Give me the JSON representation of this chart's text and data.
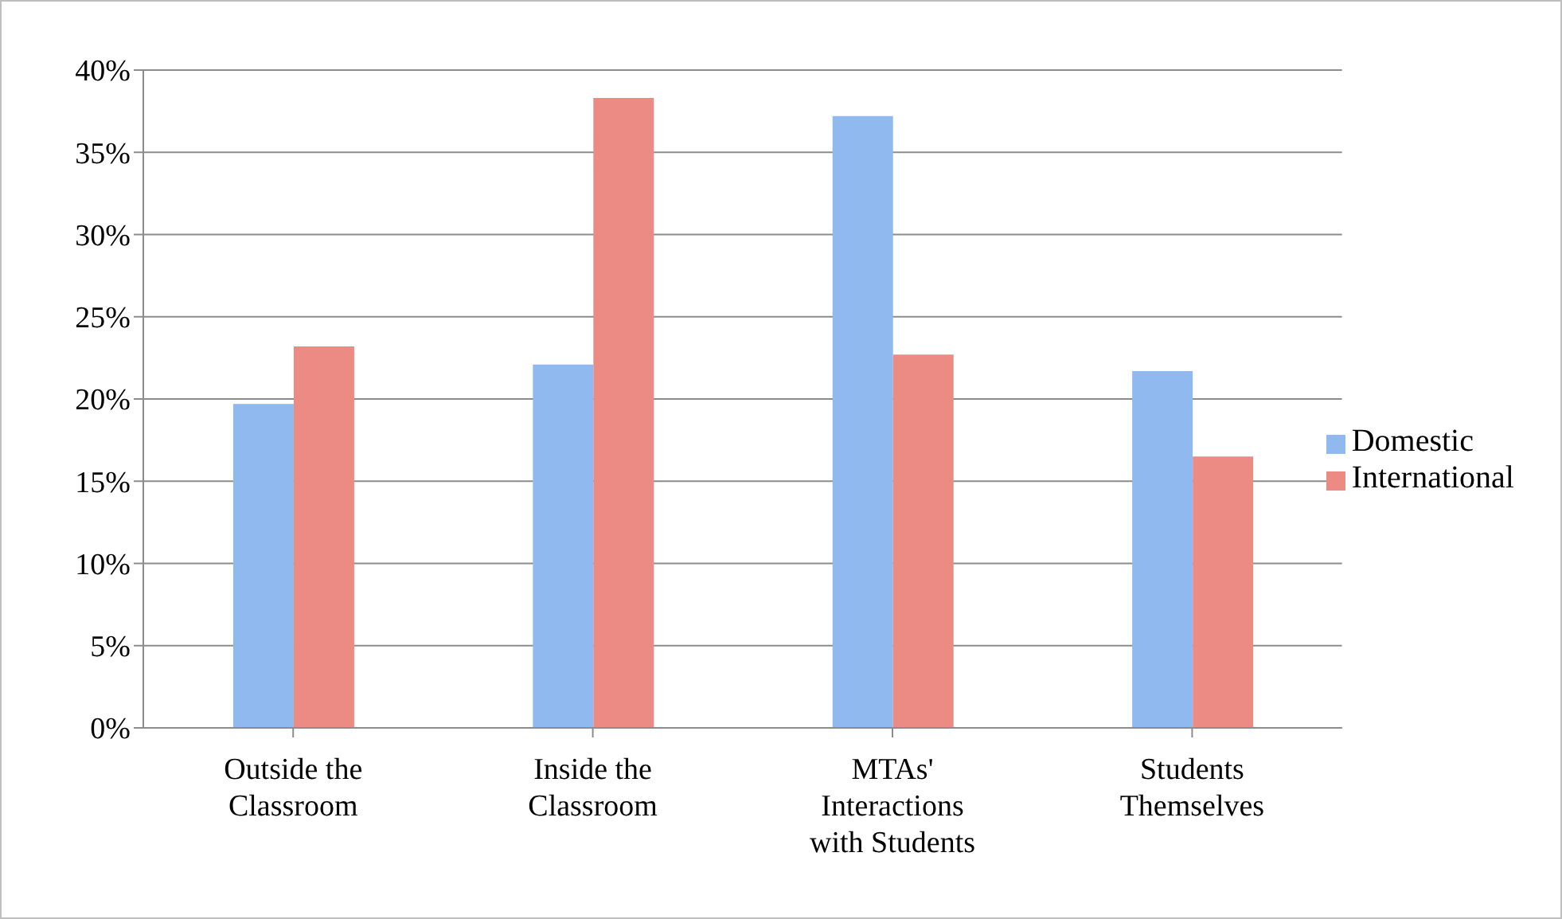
{
  "chart_data": {
    "type": "bar",
    "categories": [
      "Outside the Classroom",
      "Inside the Classroom",
      "MTAs' Interactions with Students",
      "Students Themselves"
    ],
    "series": [
      {
        "name": "Domestic",
        "color": "#8fb9ef",
        "values": [
          19.7,
          22.1,
          37.2,
          21.7
        ]
      },
      {
        "name": "International",
        "color": "#ec8a84",
        "values": [
          23.2,
          38.3,
          22.7,
          16.5
        ]
      }
    ],
    "ylim": [
      0,
      40
    ],
    "yticks": [
      {
        "value": 0,
        "label": "0%"
      },
      {
        "value": 5,
        "label": "5%"
      },
      {
        "value": 10,
        "label": "10%"
      },
      {
        "value": 15,
        "label": "15%"
      },
      {
        "value": 20,
        "label": "20%"
      },
      {
        "value": 25,
        "label": "25%"
      },
      {
        "value": 30,
        "label": "30%"
      },
      {
        "value": 35,
        "label": "35%"
      },
      {
        "value": 40,
        "label": "40%"
      }
    ],
    "grid": "y",
    "legend": "right"
  }
}
